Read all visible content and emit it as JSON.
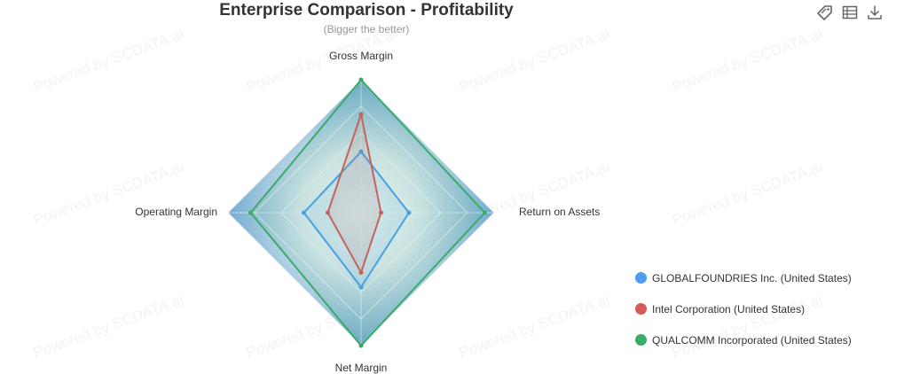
{
  "watermark": "Powered by SCDATA.ai",
  "toolbar": {
    "icons": [
      "tag-icon",
      "data-view-icon",
      "download-icon"
    ]
  },
  "chart_data": {
    "type": "radar",
    "title": "Enterprise Comparison - Profitability",
    "subtitle": "(Bigger the better)",
    "indicators": [
      "Gross Margin",
      "Return on Assets",
      "Net Margin",
      "Operating Margin"
    ],
    "max": 1,
    "series": [
      {
        "name": "GLOBALFOUNDRIES Inc. (United States)",
        "color": "#4a9ff0",
        "values": [
          0.46,
          0.36,
          0.56,
          0.43
        ]
      },
      {
        "name": "Intel Corporation (United States)",
        "color": "#d65a58",
        "values": [
          0.74,
          0.15,
          0.45,
          0.25
        ]
      },
      {
        "name": "QUALCOMM Incorporated (United States)",
        "color": "#3bab6a",
        "values": [
          1.0,
          0.93,
          1.0,
          0.83
        ]
      }
    ],
    "split_count": 5,
    "legend_position": "right"
  }
}
